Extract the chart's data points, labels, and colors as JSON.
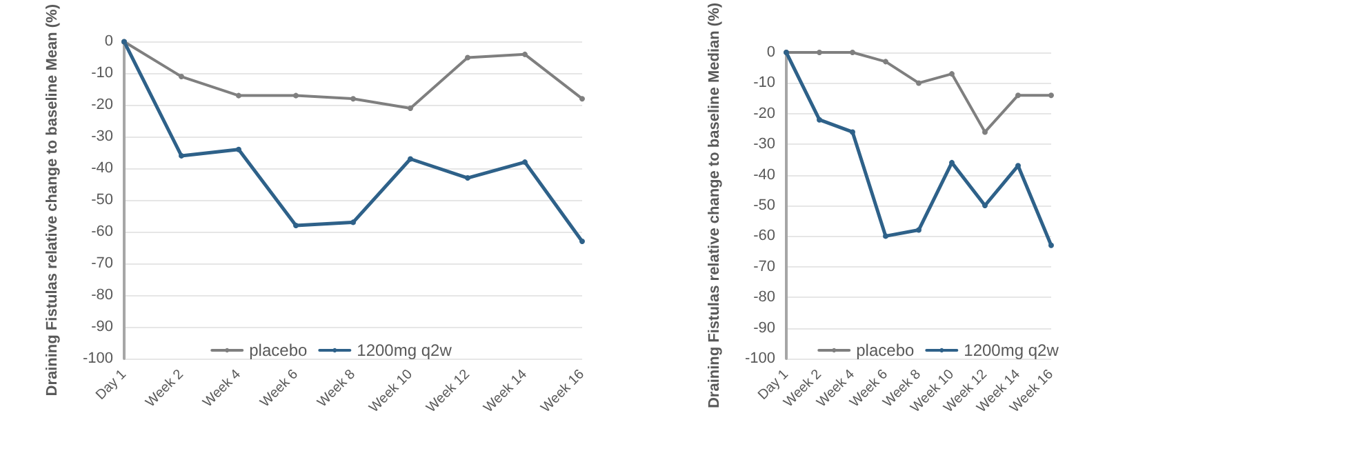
{
  "chart_data": [
    {
      "type": "line",
      "ylabel": "Draining Fistulas relative change to baseline Mean (%)",
      "categories": [
        "Day 1",
        "Week 2",
        "Week 4",
        "Week 6",
        "Week 8",
        "Week 10",
        "Week 12",
        "Week 14",
        "Week 16"
      ],
      "ylim": [
        -100,
        0
      ],
      "yticks": [
        -100,
        -90,
        -80,
        -70,
        -60,
        -50,
        -40,
        -30,
        -20,
        -10,
        0
      ],
      "grid": "y",
      "legend": "bottom",
      "marker": "circle",
      "line_style": "solid",
      "series": [
        {
          "name": "placebo",
          "color": "#7f7f7f",
          "values": [
            0,
            -11,
            -17,
            -17,
            -18,
            -21,
            -5,
            -4,
            -18
          ]
        },
        {
          "name": "1200mg q2w",
          "color": "#2e6189",
          "values": [
            0,
            -36,
            -34,
            -58,
            -57,
            -37,
            -43,
            -38,
            -63
          ]
        }
      ]
    },
    {
      "type": "line",
      "ylabel": "Draining Fistulas relative change to baseline Median (%)",
      "categories": [
        "Day 1",
        "Week 2",
        "Week 4",
        "Week 6",
        "Week 8",
        "Week 10",
        "Week 12",
        "Week 14",
        "Week 16"
      ],
      "ylim": [
        -100,
        0
      ],
      "yticks": [
        -100,
        -90,
        -80,
        -70,
        -60,
        -50,
        -40,
        -30,
        -20,
        -10,
        0
      ],
      "grid": "y",
      "legend": "bottom",
      "marker": "circle",
      "line_style": "solid",
      "series": [
        {
          "name": "placebo",
          "color": "#7f7f7f",
          "values": [
            0,
            0,
            0,
            -3,
            -10,
            -7,
            -26,
            -14,
            -14
          ]
        },
        {
          "name": "1200mg q2w",
          "color": "#2e6189",
          "values": [
            0,
            -22,
            -26,
            -60,
            -58,
            -36,
            -50,
            -37,
            -63
          ]
        }
      ]
    }
  ]
}
